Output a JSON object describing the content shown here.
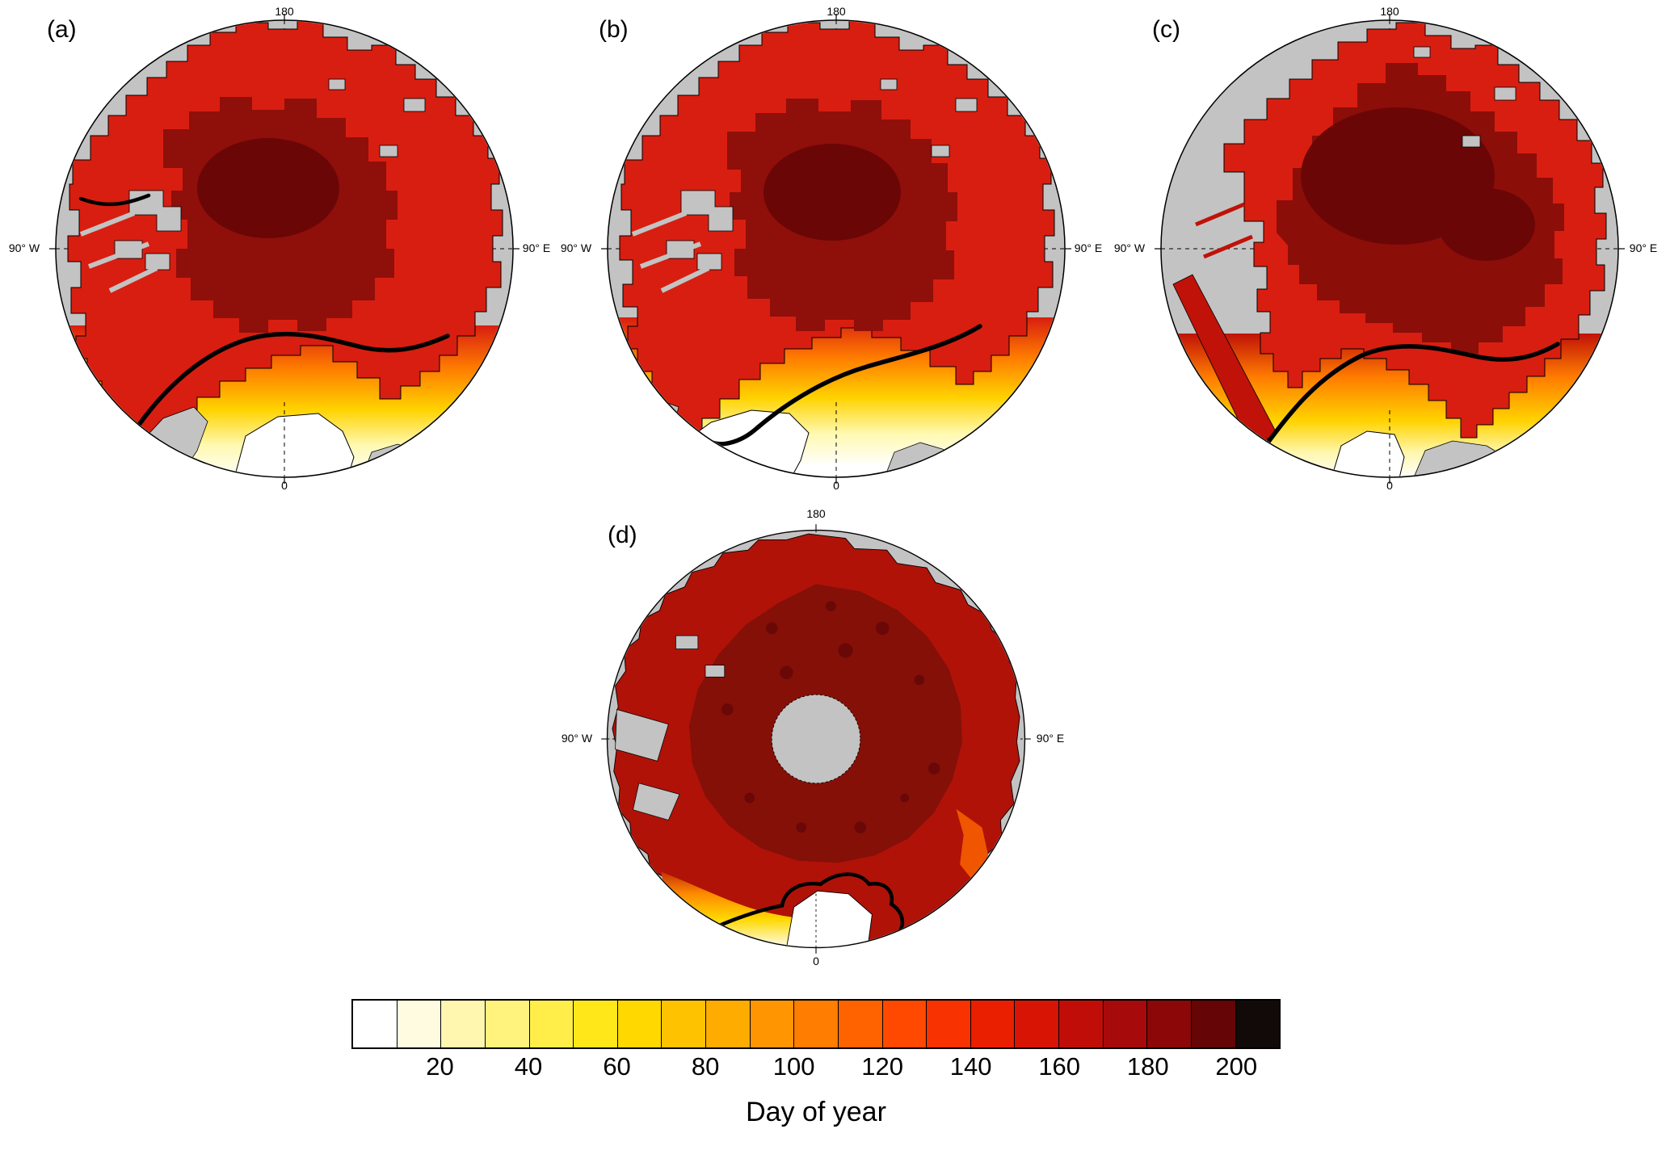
{
  "figure": {
    "background": "#ffffff",
    "panels": [
      {
        "id": "a",
        "label": "(a)",
        "top_label": "180",
        "bottom_label": "0",
        "left_label": "90° W",
        "right_label": "90° E"
      },
      {
        "id": "b",
        "label": "(b)",
        "top_label": "180",
        "bottom_label": "0",
        "left_label": "90° W",
        "right_label": "90° E"
      },
      {
        "id": "c",
        "label": "(c)",
        "top_label": "180",
        "bottom_label": "0",
        "left_label": "90° W",
        "right_label": "90° E"
      },
      {
        "id": "d",
        "label": "(d)",
        "top_label": "180",
        "bottom_label": "0",
        "left_label": "90° W",
        "right_label": "90° E"
      }
    ],
    "map_colors": {
      "land": "#c3c3c3",
      "ice_base": "#d81e10",
      "ice_dark": "#8f0f0b",
      "ice_darkest": "#6b0606",
      "open_water": "#ffffff",
      "contour": "#000000"
    }
  },
  "chart_data": {
    "type": "heatmap",
    "subtype": "polar-stereographic-map-panels",
    "panels": [
      {
        "label": "(a)"
      },
      {
        "label": "(b)"
      },
      {
        "label": "(c)"
      },
      {
        "label": "(d)"
      }
    ],
    "graticule_labels": {
      "top": "180",
      "left": "90° W",
      "right": "90° E",
      "bottom": "0"
    },
    "colorbar": {
      "label": "Day of year",
      "orientation": "horizontal",
      "range": [
        0,
        210
      ],
      "bin_width": 10,
      "ticks": [
        20,
        40,
        60,
        80,
        100,
        120,
        140,
        160,
        180,
        200
      ],
      "colors": [
        "#ffffff",
        "#fffbe0",
        "#fff7b0",
        "#fff27d",
        "#ffee4a",
        "#ffe71a",
        "#ffd800",
        "#ffc200",
        "#ffac00",
        "#ff9500",
        "#ff7d00",
        "#ff6300",
        "#ff4900",
        "#f83200",
        "#ea1f00",
        "#d81405",
        "#c00d08",
        "#a60a0a",
        "#8b0708",
        "#650505",
        "#120909"
      ]
    },
    "encoding": "Filled day-of-year contours on four Arctic polar maps; gray = land/no data, white = lowest values, thick black line = highlighted contour."
  }
}
